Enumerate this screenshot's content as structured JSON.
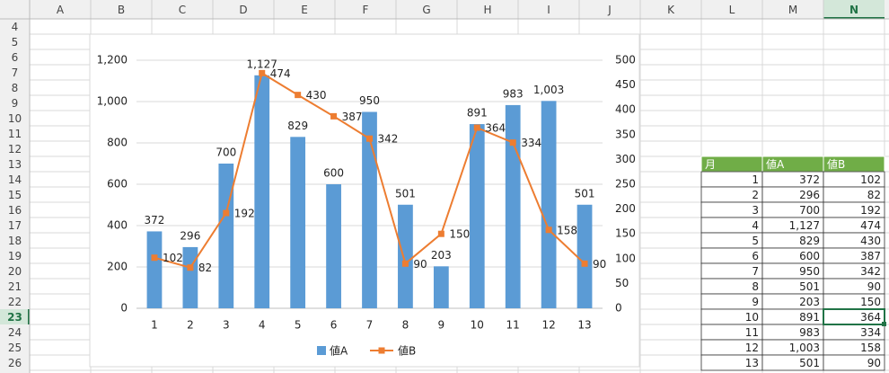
{
  "sheet": {
    "columns": [
      "A",
      "B",
      "C",
      "D",
      "E",
      "F",
      "G",
      "H",
      "I",
      "J",
      "K",
      "L",
      "M",
      "N"
    ],
    "rows": [
      4,
      5,
      6,
      7,
      8,
      9,
      10,
      11,
      12,
      13,
      14,
      15,
      16,
      17,
      18,
      19,
      20,
      21,
      22,
      23,
      24,
      25,
      26
    ]
  },
  "chart_data": {
    "type": "bar",
    "categories": [
      1,
      2,
      3,
      4,
      5,
      6,
      7,
      8,
      9,
      10,
      11,
      12,
      13
    ],
    "series": [
      {
        "name": "値A",
        "type": "bar",
        "color": "#5b9bd5",
        "values": [
          372,
          296,
          700,
          1127,
          829,
          600,
          950,
          501,
          203,
          891,
          983,
          1003,
          501
        ],
        "value_labels": [
          "372",
          "296",
          "700",
          "1,127",
          "829",
          "600",
          "950",
          "501",
          "203",
          "891",
          "983",
          "1,003",
          "501"
        ]
      },
      {
        "name": "値B",
        "type": "line",
        "axis": "y2",
        "color": "#ed7d31",
        "values": [
          102,
          82,
          192,
          474,
          430,
          387,
          342,
          90,
          150,
          364,
          334,
          158,
          90
        ]
      }
    ],
    "ylim": [
      0,
      1200
    ],
    "yticks": [
      0,
      200,
      400,
      600,
      800,
      {
        "value": 1000,
        "label": "1,000"
      },
      {
        "value": 1200,
        "label": "1,200"
      }
    ],
    "y2lim": [
      0,
      500
    ],
    "y2ticks": [
      0,
      50,
      100,
      150,
      200,
      250,
      300,
      350,
      400,
      450,
      500
    ],
    "grid": true,
    "legend": "bottom"
  },
  "table": {
    "header": [
      "月",
      "値A",
      "値B"
    ],
    "rows": [
      [
        1,
        372,
        102
      ],
      [
        2,
        296,
        82
      ],
      [
        3,
        700,
        192
      ],
      [
        4,
        "1,127",
        474
      ],
      [
        5,
        829,
        430
      ],
      [
        6,
        600,
        387
      ],
      [
        7,
        950,
        342
      ],
      [
        8,
        501,
        90
      ],
      [
        9,
        203,
        150
      ],
      [
        10,
        891,
        364
      ],
      [
        11,
        983,
        334
      ],
      [
        12,
        "1,003",
        158
      ],
      [
        13,
        501,
        90
      ]
    ]
  }
}
